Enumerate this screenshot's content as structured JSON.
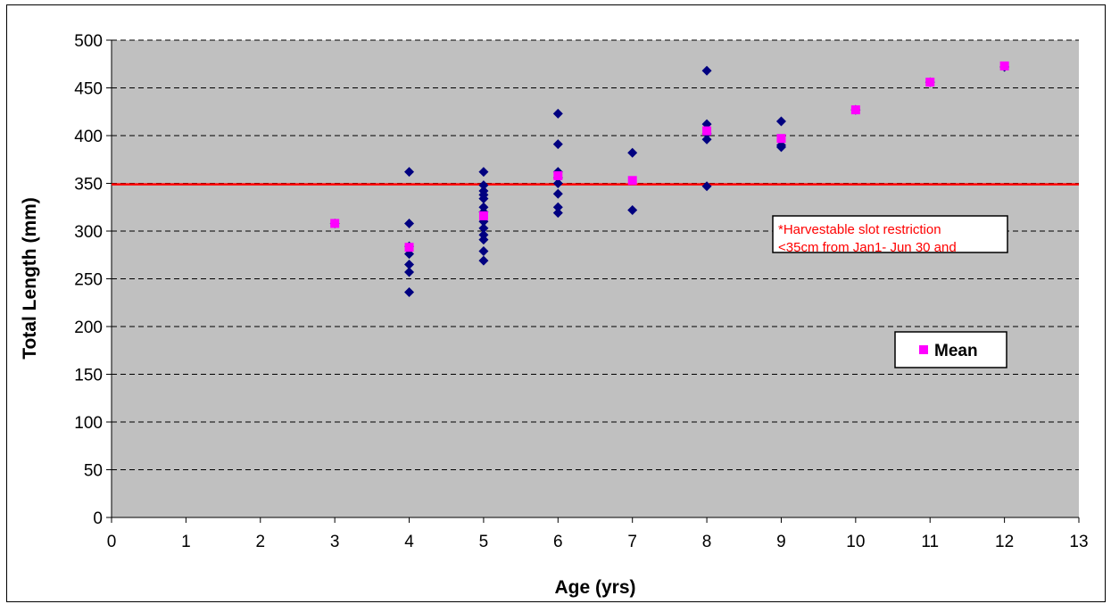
{
  "chart_data": {
    "type": "scatter",
    "title": "",
    "xlabel": "Age (yrs)",
    "ylabel": "Total Length (mm)",
    "xlim": [
      0,
      13
    ],
    "ylim": [
      0,
      500
    ],
    "x_ticks": [
      0,
      1,
      2,
      3,
      4,
      5,
      6,
      7,
      8,
      9,
      10,
      11,
      12,
      13
    ],
    "y_ticks": [
      0,
      50,
      100,
      150,
      200,
      250,
      300,
      350,
      400,
      450,
      500
    ],
    "grid": "horizontal dashed",
    "plot_background": "#c0c0c0",
    "series": [
      {
        "color": "#000080",
        "marker": "diamond",
        "points": [
          [
            3,
            308
          ],
          [
            4,
            362
          ],
          [
            4,
            308
          ],
          [
            4,
            284
          ],
          [
            4,
            276
          ],
          [
            4,
            265
          ],
          [
            4,
            257
          ],
          [
            4,
            236
          ],
          [
            5,
            362
          ],
          [
            5,
            348
          ],
          [
            5,
            342
          ],
          [
            5,
            338
          ],
          [
            5,
            334
          ],
          [
            5,
            325
          ],
          [
            5,
            320
          ],
          [
            5,
            310
          ],
          [
            5,
            303
          ],
          [
            5,
            296
          ],
          [
            5,
            291
          ],
          [
            5,
            279
          ],
          [
            5,
            269
          ],
          [
            6,
            423
          ],
          [
            6,
            391
          ],
          [
            6,
            362
          ],
          [
            6,
            356
          ],
          [
            6,
            350
          ],
          [
            6,
            339
          ],
          [
            6,
            325
          ],
          [
            6,
            319
          ],
          [
            7,
            382
          ],
          [
            7,
            322
          ],
          [
            8,
            468
          ],
          [
            8,
            412
          ],
          [
            8,
            402
          ],
          [
            8,
            396
          ],
          [
            8,
            347
          ],
          [
            9,
            415
          ],
          [
            9,
            390
          ],
          [
            9,
            388
          ],
          [
            10,
            427
          ],
          [
            11,
            456
          ],
          [
            12,
            472
          ]
        ]
      },
      {
        "name": "Mean",
        "color": "#ff00ff",
        "marker": "square",
        "points": [
          [
            3,
            308
          ],
          [
            4,
            283
          ],
          [
            5,
            316
          ],
          [
            6,
            358
          ],
          [
            7,
            353
          ],
          [
            8,
            405
          ],
          [
            9,
            397
          ],
          [
            10,
            427
          ],
          [
            11,
            456
          ],
          [
            12,
            473
          ]
        ]
      }
    ],
    "reference_line": {
      "y": 349,
      "color": "#ff0000"
    },
    "annotation": {
      "lines": [
        "*Harvestable slot restriction",
        "<35cm from Jan1- Jun 30 and"
      ],
      "color": "#ff0000"
    },
    "legend": {
      "position": "right",
      "entries": [
        "Mean"
      ]
    }
  }
}
